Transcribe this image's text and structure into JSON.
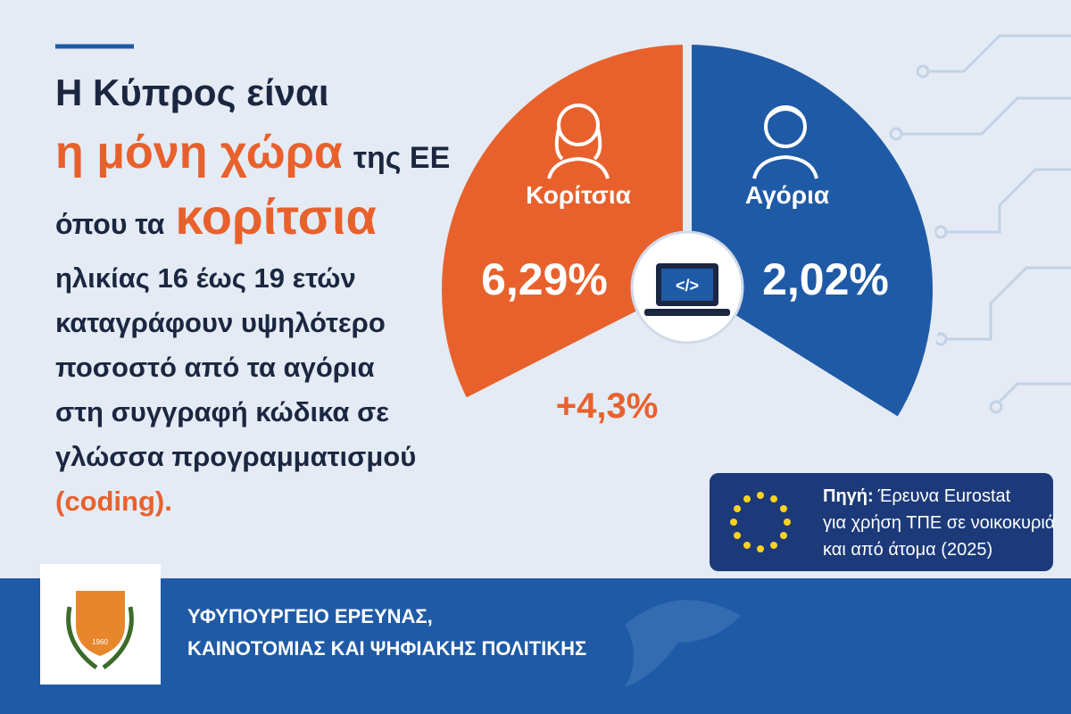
{
  "headline": {
    "line1": "Η Κύπρος είναι",
    "highlight1": "η μόνη χώρα",
    "line2_rest": "της ΕΕ",
    "line3_start": "όπου τα",
    "highlight2": "κορίτσια",
    "body": [
      "ηλικίας 16 έως 19 ετών",
      "καταγράφουν υψηλότερο",
      "ποσοστό από τα αγόρια",
      "στη συγγραφή κώδικα σε",
      "γλώσσα προγραμματισμού"
    ],
    "highlight3": "(coding)."
  },
  "graphic": {
    "girls": {
      "label": "Κορίτσια",
      "value": "6,29%"
    },
    "boys": {
      "label": "Αγόρια",
      "value": "2,02%"
    },
    "difference": "+4,3%",
    "icon_text": "</>"
  },
  "source": {
    "label": "Πηγή:",
    "lines": [
      "Έρευνα Eurostat",
      "για χρήση ΤΠΕ σε νοικοκυριά",
      "και από άτομα (2025)"
    ]
  },
  "footer": {
    "ministry": [
      "ΥΦΥΠΟΥΡΓΕΙΟ ΕΡΕΥΝΑΣ,",
      "ΚΑΙΝΟΤΟΜΙΑΣ ΚΑΙ ΨΗΦΙΑΚΗΣ ΠΟΛΙΤΙΚΗΣ"
    ],
    "emblem_year": "1960"
  }
}
